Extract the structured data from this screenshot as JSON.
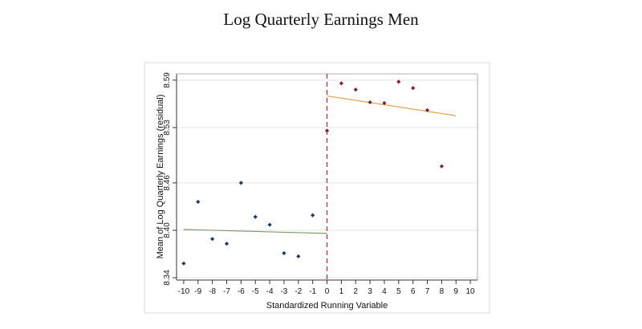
{
  "chart_data": {
    "type": "scatter",
    "title": "Log Quarterly Earnings Men",
    "xlabel": "Standardized Running Variable",
    "ylabel": "Mean of Log Quarterly Earnings (residual)",
    "xlim": [
      -10.5,
      10.5
    ],
    "ylim": [
      8.337,
      8.598
    ],
    "x_ticks": [
      -10,
      -9,
      -8,
      -7,
      -6,
      -5,
      -4,
      -3,
      -2,
      -1,
      0,
      1,
      2,
      3,
      4,
      5,
      6,
      7,
      8,
      9,
      10
    ],
    "y_ticks": [
      8.34,
      8.4,
      8.46,
      8.53,
      8.59
    ],
    "y_tick_labels": [
      "8.34",
      "8.40",
      "8.46",
      "8.53",
      "8.59"
    ],
    "grid": "horizontal",
    "cutoff": 0,
    "series": [
      {
        "color": "#1f3a68",
        "marker": "diamond",
        "points": [
          {
            "x": -10,
            "y": 8.358
          },
          {
            "x": -9,
            "y": 8.436
          },
          {
            "x": -8,
            "y": 8.389
          },
          {
            "x": -7,
            "y": 8.383
          },
          {
            "x": -6,
            "y": 8.46
          },
          {
            "x": -5,
            "y": 8.417
          },
          {
            "x": -4,
            "y": 8.407
          },
          {
            "x": -3,
            "y": 8.371
          },
          {
            "x": -2,
            "y": 8.367
          },
          {
            "x": -1,
            "y": 8.419
          }
        ],
        "fit": {
          "color": "#7a9a6a",
          "x": [
            -10,
            0
          ],
          "y": [
            8.401,
            8.396
          ]
        }
      },
      {
        "color": "#8b1c2c",
        "marker": "diamond",
        "points": [
          {
            "x": 0,
            "y": 8.526
          },
          {
            "x": 1,
            "y": 8.586
          },
          {
            "x": 2,
            "y": 8.578
          },
          {
            "x": 3,
            "y": 8.562
          },
          {
            "x": 4,
            "y": 8.561
          },
          {
            "x": 5,
            "y": 8.588
          },
          {
            "x": 6,
            "y": 8.58
          },
          {
            "x": 7,
            "y": 8.552
          },
          {
            "x": 8,
            "y": 8.481
          }
        ],
        "fit": {
          "color": "#d9a34a",
          "x": [
            0,
            9
          ],
          "y": [
            8.57,
            8.545
          ]
        }
      }
    ]
  }
}
